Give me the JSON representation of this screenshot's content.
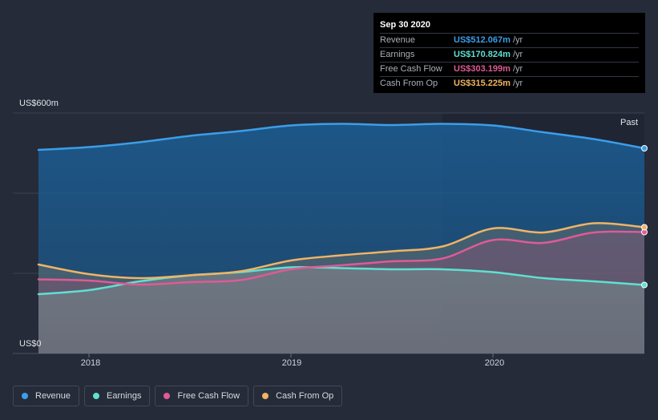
{
  "tooltip": {
    "date": "Sep 30 2020",
    "rows": [
      {
        "label": "Revenue",
        "value": "US$512.067m",
        "unit": "/yr",
        "color": "#3b9ee8"
      },
      {
        "label": "Earnings",
        "value": "US$170.824m",
        "unit": "/yr",
        "color": "#5fe0d2"
      },
      {
        "label": "Free Cash Flow",
        "value": "US$303.199m",
        "unit": "/yr",
        "color": "#e05a96"
      },
      {
        "label": "Cash From Op",
        "value": "US$315.225m",
        "unit": "/yr",
        "color": "#f0b466"
      }
    ]
  },
  "chart_data": {
    "type": "area",
    "title": "",
    "ylabel_top": "US$600m",
    "ylabel_bottom": "US$0",
    "ylim": [
      0,
      600
    ],
    "xlim": [
      2017.75,
      2020.75
    ],
    "xticks": [
      {
        "value": 2018,
        "label": "2018"
      },
      {
        "value": 2019,
        "label": "2019"
      },
      {
        "value": 2020,
        "label": "2020"
      }
    ],
    "past_label": "Past",
    "past_start": 2019.75,
    "series": [
      {
        "name": "Revenue",
        "color": "#3b9ee8",
        "x": [
          2017.75,
          2018.0,
          2018.25,
          2018.5,
          2018.75,
          2019.0,
          2019.25,
          2019.5,
          2019.75,
          2020.0,
          2020.25,
          2020.5,
          2020.75
        ],
        "values": [
          508,
          515,
          527,
          543,
          555,
          569,
          573,
          570,
          573,
          569,
          552,
          535,
          512
        ]
      },
      {
        "name": "Earnings",
        "color": "#5fe0d2",
        "x": [
          2017.75,
          2018.0,
          2018.25,
          2018.5,
          2018.75,
          2019.0,
          2019.25,
          2019.5,
          2019.75,
          2020.0,
          2020.25,
          2020.5,
          2020.75
        ],
        "values": [
          148,
          158,
          180,
          195,
          203,
          215,
          213,
          210,
          210,
          203,
          188,
          180,
          171
        ]
      },
      {
        "name": "Free Cash Flow",
        "color": "#e05a96",
        "x": [
          2017.75,
          2018.0,
          2018.25,
          2018.5,
          2018.75,
          2019.0,
          2019.25,
          2019.5,
          2019.75,
          2020.0,
          2020.25,
          2020.5,
          2020.75
        ],
        "values": [
          185,
          182,
          172,
          178,
          183,
          210,
          220,
          230,
          237,
          283,
          276,
          302,
          303
        ]
      },
      {
        "name": "Cash From Op",
        "color": "#f0b466",
        "x": [
          2017.75,
          2018.0,
          2018.25,
          2018.5,
          2018.75,
          2019.0,
          2019.25,
          2019.5,
          2019.75,
          2020.0,
          2020.25,
          2020.5,
          2020.75
        ],
        "values": [
          222,
          198,
          188,
          195,
          205,
          232,
          245,
          255,
          267,
          312,
          302,
          325,
          315
        ]
      }
    ]
  },
  "legend": [
    {
      "label": "Revenue",
      "color": "#3b9ee8"
    },
    {
      "label": "Earnings",
      "color": "#5fe0d2"
    },
    {
      "label": "Free Cash Flow",
      "color": "#e05a96"
    },
    {
      "label": "Cash From Op",
      "color": "#f0b466"
    }
  ]
}
